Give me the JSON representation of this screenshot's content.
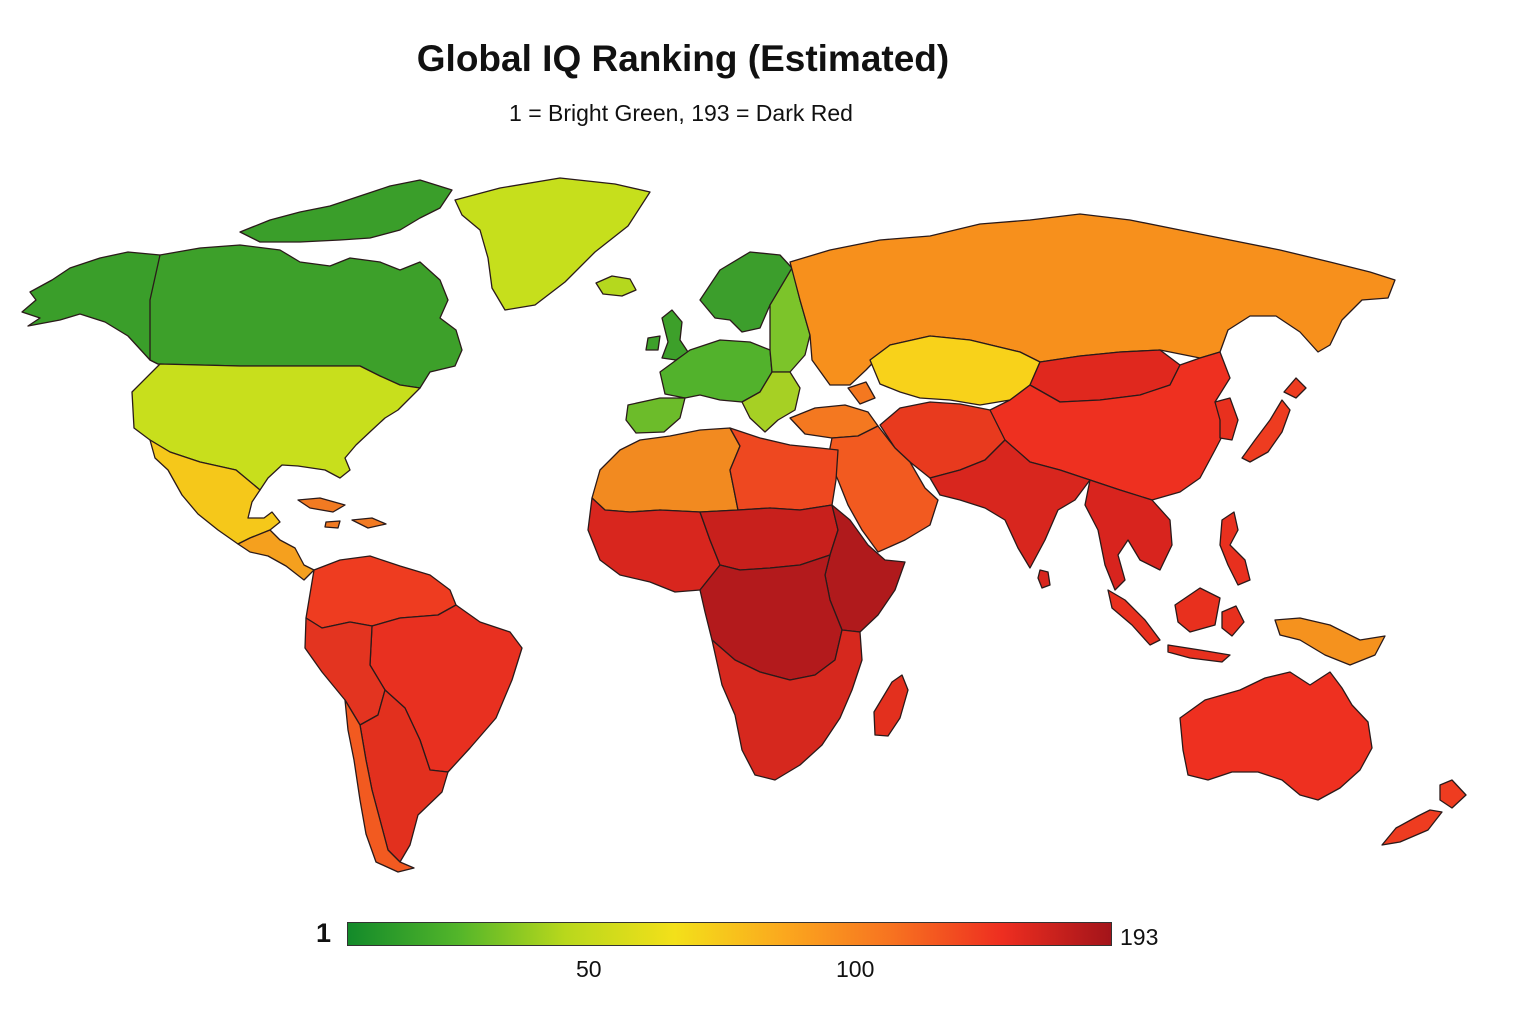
{
  "title": "Global IQ Ranking (Estimated)",
  "subtitle": "1 = Bright Green, 193 = Dark Red",
  "legend": {
    "min_label": "1",
    "max_label": "193",
    "ticks": [
      "50",
      "100"
    ],
    "colors": [
      "#138a2a",
      "#52b52a",
      "#b9d81c",
      "#f3e01a",
      "#fba81e",
      "#f77220",
      "#ee2e20",
      "#a3141a"
    ]
  },
  "regions": {
    "alaska": "#3a9e2a",
    "canada": "#3da02a",
    "arctic-islands": "#3a9e2a",
    "greenland": "#c6df1c",
    "iceland": "#b5d81e",
    "usa": "#c8df1c",
    "mexico": "#f5c81a",
    "central-america": "#f5a01e",
    "caribbean": "#f27a22",
    "south-america-north": "#ee3c20",
    "brazil": "#e83020",
    "andes": "#e33420",
    "southern-cone": "#e2301e",
    "chile": "#f25a20",
    "uk": "#3da02a",
    "scandinavia": "#3c9e2c",
    "western-europe": "#52b22c",
    "iberia": "#6cbc2a",
    "eastern-europe": "#7cc42a",
    "balkans": "#a6d024",
    "russia": "#f7901c",
    "kazakhstan": "#f8d21a",
    "caucasus-turkey": "#f47820",
    "north-africa": "#f28a20",
    "egypt-libya": "#ee4820",
    "west-africa": "#d8261e",
    "sahel": "#c8201c",
    "central-africa": "#b31a1c",
    "east-africa": "#b01a1c",
    "southern-africa": "#d6281e",
    "madagascar": "#e3301e",
    "middle-east": "#f25a20",
    "iran-central-asia": "#e83a1e",
    "india": "#d8261e",
    "china": "#ee3020",
    "mongolia": "#e0281e",
    "korea": "#e8301e",
    "japan": "#ee3c20",
    "southeast-asia": "#d8241e",
    "indonesia": "#e8301e",
    "philippines": "#e8301e",
    "png": "#f5921e",
    "australia": "#ee3020",
    "new-zealand": "#ee3c20",
    "sri-lanka": "#d8261e"
  }
}
